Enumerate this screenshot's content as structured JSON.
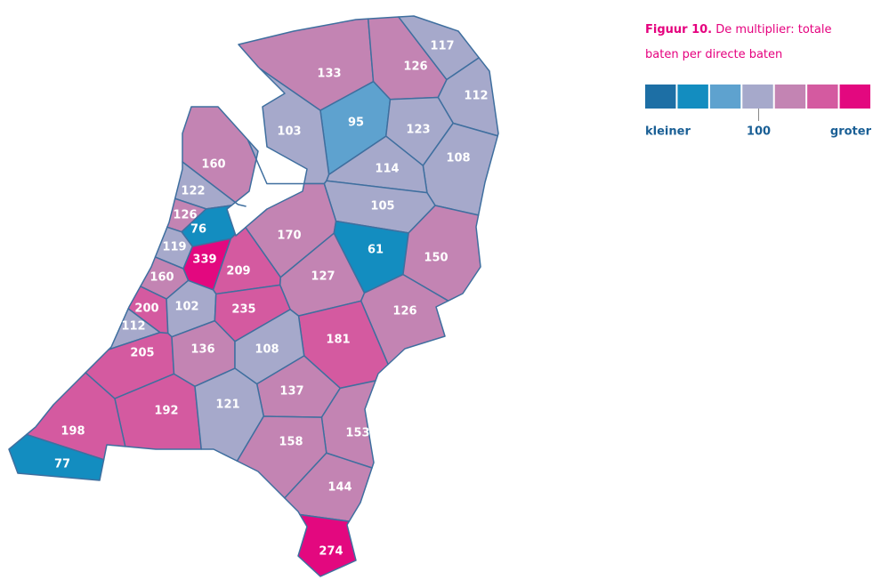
{
  "title": {
    "prefix": "Figuur 10.",
    "text": "De multiplier: totale baten per directe baten"
  },
  "legend": {
    "colors": [
      "#1d6fa5",
      "#138dc0",
      "#5ea2cf",
      "#a6a9cb",
      "#c384b3",
      "#d45aa0",
      "#e3087f"
    ],
    "labels": [
      "kleiner",
      "100",
      "groter"
    ]
  },
  "regions": [
    {
      "value": 133,
      "color": "#c384b3"
    },
    {
      "value": 126,
      "color": "#c384b3"
    },
    {
      "value": 117,
      "color": "#a6a9cb"
    },
    {
      "value": 112,
      "color": "#a6a9cb"
    },
    {
      "value": 95,
      "color": "#5ea2cf"
    },
    {
      "value": 103,
      "color": "#a6a9cb"
    },
    {
      "value": 123,
      "color": "#a6a9cb"
    },
    {
      "value": 108,
      "color": "#a6a9cb"
    },
    {
      "value": 160,
      "color": "#c384b3"
    },
    {
      "value": 114,
      "color": "#a6a9cb"
    },
    {
      "value": 122,
      "color": "#a6a9cb"
    },
    {
      "value": 105,
      "color": "#a6a9cb"
    },
    {
      "value": 126,
      "color": "#c384b3"
    },
    {
      "value": 76,
      "color": "#138dc0"
    },
    {
      "value": 119,
      "color": "#a6a9cb"
    },
    {
      "value": 170,
      "color": "#c384b3"
    },
    {
      "value": 61,
      "color": "#138dc0"
    },
    {
      "value": 150,
      "color": "#c384b3"
    },
    {
      "value": 339,
      "color": "#e3087f"
    },
    {
      "value": 209,
      "color": "#d45aa0"
    },
    {
      "value": 127,
      "color": "#c384b3"
    },
    {
      "value": 160,
      "color": "#c384b3"
    },
    {
      "value": 200,
      "color": "#d45aa0"
    },
    {
      "value": 102,
      "color": "#a6a9cb"
    },
    {
      "value": 235,
      "color": "#d45aa0"
    },
    {
      "value": 126,
      "color": "#c384b3"
    },
    {
      "value": 112,
      "color": "#a6a9cb"
    },
    {
      "value": 181,
      "color": "#d45aa0"
    },
    {
      "value": 205,
      "color": "#d45aa0"
    },
    {
      "value": 136,
      "color": "#c384b3"
    },
    {
      "value": 108,
      "color": "#a6a9cb"
    },
    {
      "value": 137,
      "color": "#c384b3"
    },
    {
      "value": 192,
      "color": "#d45aa0"
    },
    {
      "value": 121,
      "color": "#a6a9cb"
    },
    {
      "value": 198,
      "color": "#d45aa0"
    },
    {
      "value": 153,
      "color": "#c384b3"
    },
    {
      "value": 158,
      "color": "#c384b3"
    },
    {
      "value": 77,
      "color": "#138dc0"
    },
    {
      "value": 144,
      "color": "#c384b3"
    },
    {
      "value": 274,
      "color": "#e3087f"
    }
  ]
}
